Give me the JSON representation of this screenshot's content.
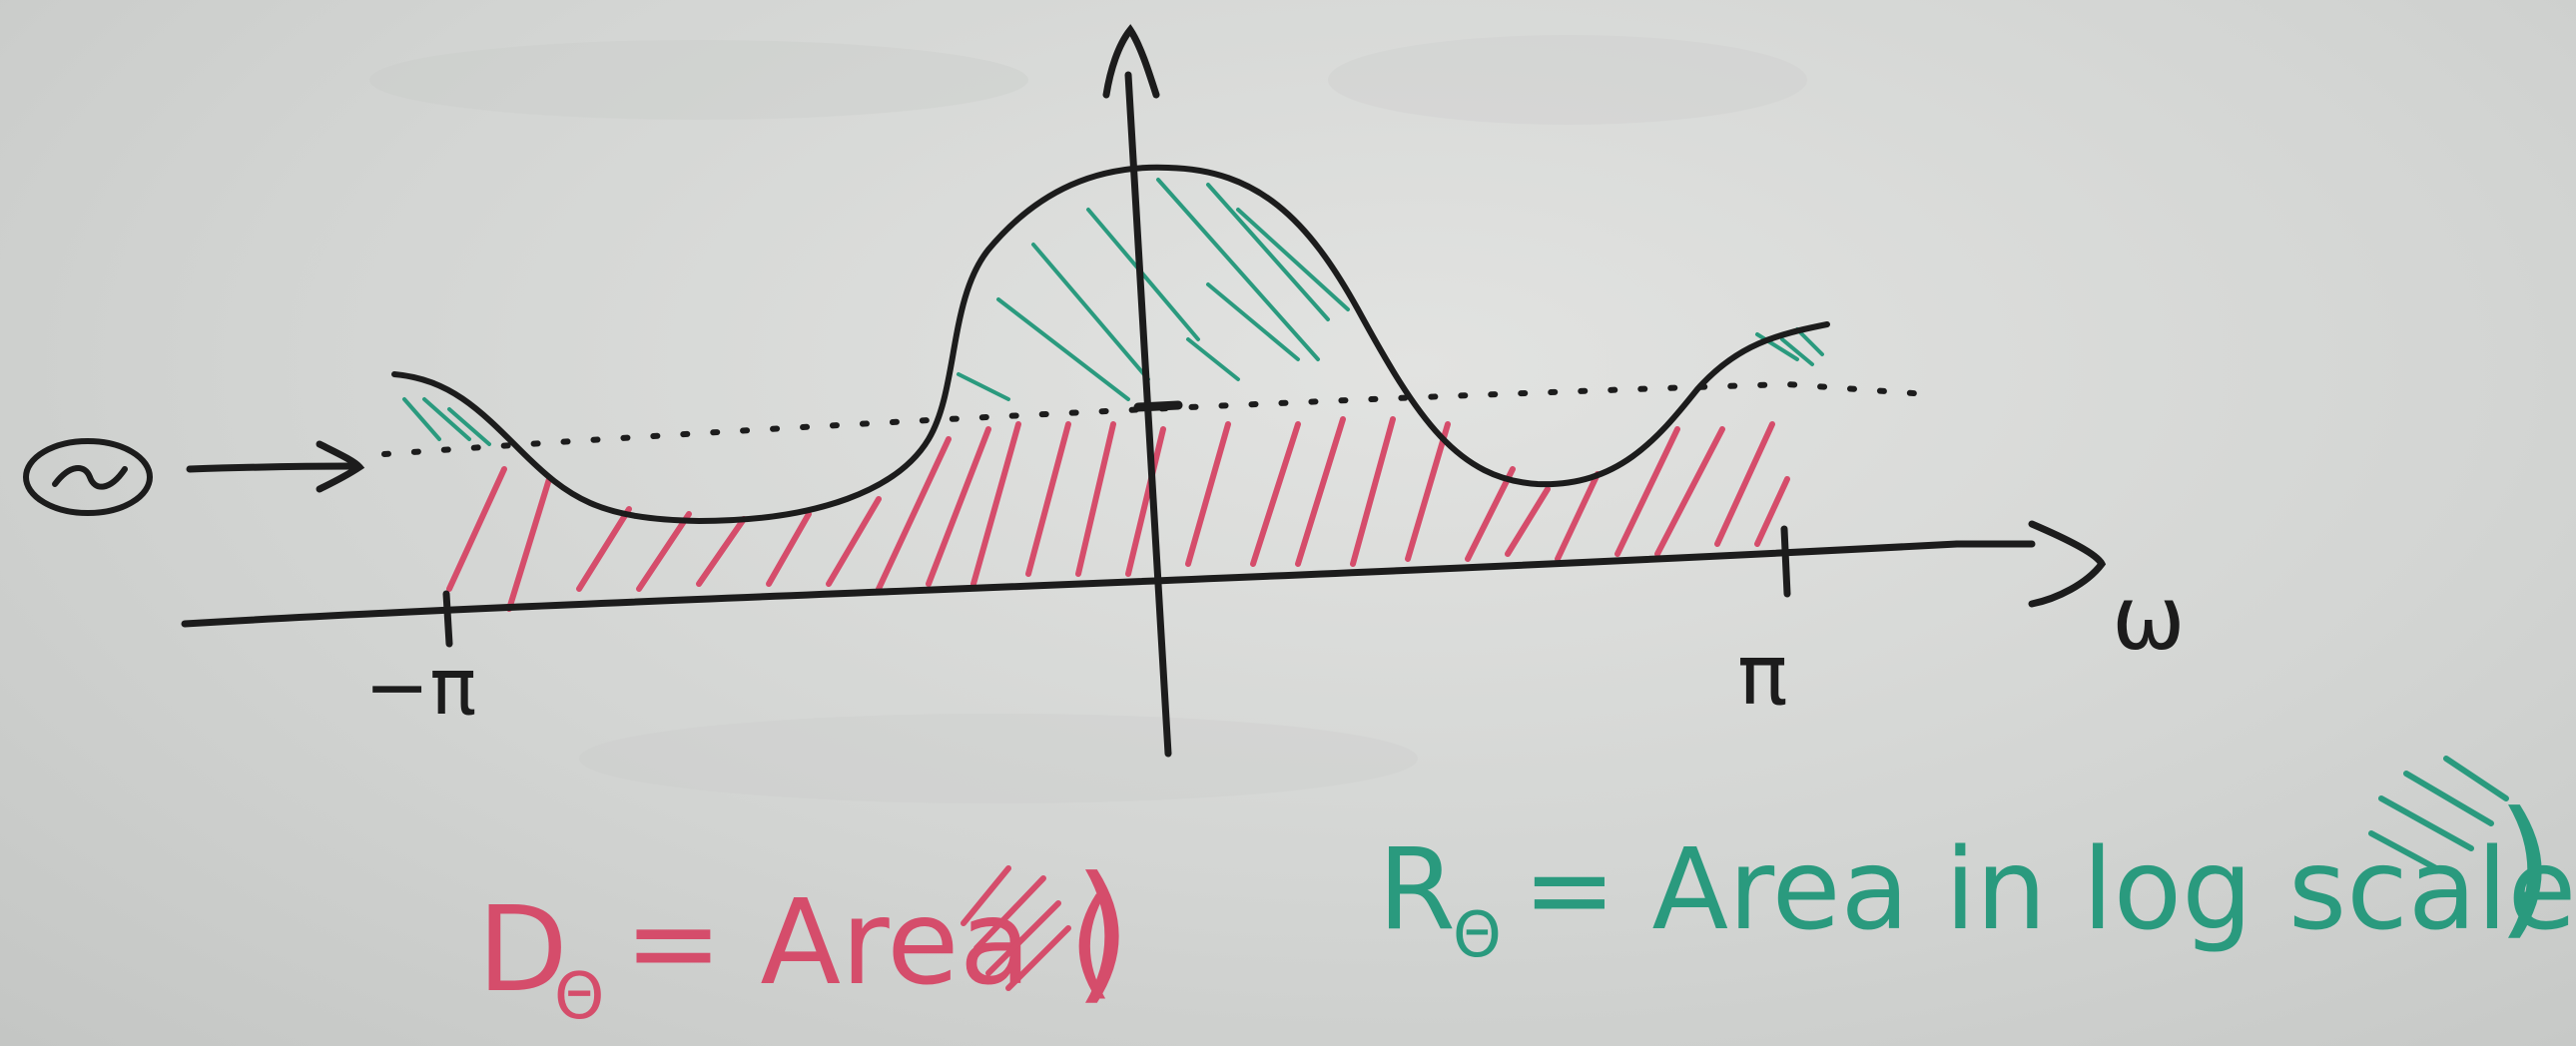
{
  "colors": {
    "marker_black": "#1c1c1c",
    "marker_red": "#d54d6b",
    "marker_green": "#2a9a7e",
    "board": "#d8dad8"
  },
  "axis": {
    "x_label": "ω",
    "left_tick_label": "−π",
    "right_tick_label": "π"
  },
  "threshold": {
    "symbol": "Θ"
  },
  "legend": {
    "distortion": {
      "label": "D",
      "subscript": "Θ",
      "equation": "= Area (",
      "close": ")"
    },
    "rate": {
      "label": "R",
      "subscript": "Θ",
      "equation": "= Area in log scale (",
      "close": ")"
    }
  }
}
